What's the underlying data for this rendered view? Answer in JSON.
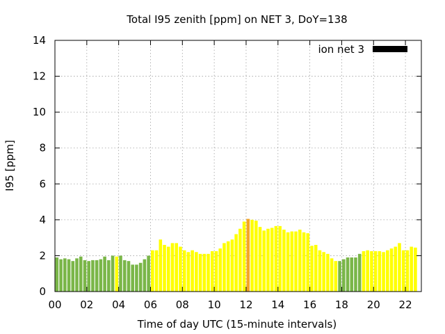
{
  "chart_data": {
    "type": "bar",
    "title": "Total I95 zenith [ppm] on NET 3, DoY=138",
    "xlabel": "Time of day UTC (15-minute intervals)",
    "ylabel": "I95 [ppm]",
    "xlim": [
      0,
      23
    ],
    "ylim": [
      0,
      14
    ],
    "x_ticks": [
      "00",
      "02",
      "04",
      "06",
      "08",
      "10",
      "12",
      "14",
      "16",
      "18",
      "20",
      "22"
    ],
    "y_ticks": [
      "0",
      "2",
      "4",
      "6",
      "8",
      "10",
      "12",
      "14"
    ],
    "grid": true,
    "legend": {
      "position": "top-right",
      "entries": [
        {
          "label": "ion net 3",
          "color": "#000000"
        }
      ]
    },
    "colors": {
      "green": "#7ab648",
      "yellow": "#ffff00",
      "orange": "#f5a623"
    },
    "interval_hours": 0.25,
    "values": [
      1.9,
      1.8,
      1.85,
      1.8,
      1.7,
      1.85,
      1.95,
      1.75,
      1.7,
      1.75,
      1.75,
      1.8,
      1.95,
      1.75,
      2.0,
      1.95,
      2.0,
      1.75,
      1.7,
      1.5,
      1.5,
      1.6,
      1.8,
      2.0,
      2.3,
      2.3,
      2.9,
      2.6,
      2.5,
      2.7,
      2.7,
      2.5,
      2.3,
      2.2,
      2.3,
      2.2,
      2.1,
      2.1,
      2.1,
      2.25,
      2.25,
      2.4,
      2.7,
      2.8,
      2.9,
      3.2,
      3.5,
      3.9,
      4.05,
      4.0,
      3.95,
      3.6,
      3.4,
      3.5,
      3.55,
      3.65,
      3.65,
      3.45,
      3.3,
      3.35,
      3.35,
      3.45,
      3.3,
      3.25,
      2.55,
      2.6,
      2.3,
      2.2,
      2.1,
      1.85,
      1.7,
      1.7,
      1.8,
      1.9,
      1.9,
      1.9,
      2.1,
      2.25,
      2.3,
      2.25,
      2.25,
      2.25,
      2.2,
      2.3,
      2.4,
      2.5,
      2.7,
      2.3,
      2.3,
      2.5,
      2.45
    ],
    "bar_colors": [
      "green",
      "green",
      "green",
      "green",
      "green",
      "green",
      "green",
      "green",
      "green",
      "green",
      "green",
      "green",
      "green",
      "green",
      "green",
      "yellow",
      "green",
      "green",
      "green",
      "green",
      "green",
      "green",
      "green",
      "green",
      "yellow",
      "yellow",
      "yellow",
      "yellow",
      "yellow",
      "yellow",
      "yellow",
      "yellow",
      "yellow",
      "yellow",
      "yellow",
      "yellow",
      "yellow",
      "yellow",
      "yellow",
      "yellow",
      "yellow",
      "yellow",
      "yellow",
      "yellow",
      "yellow",
      "yellow",
      "yellow",
      "yellow",
      "orange",
      "yellow",
      "yellow",
      "yellow",
      "yellow",
      "yellow",
      "yellow",
      "yellow",
      "yellow",
      "yellow",
      "yellow",
      "yellow",
      "yellow",
      "yellow",
      "yellow",
      "yellow",
      "yellow",
      "yellow",
      "yellow",
      "yellow",
      "yellow",
      "yellow",
      "yellow",
      "green",
      "green",
      "green",
      "green",
      "green",
      "green",
      "yellow",
      "yellow",
      "yellow",
      "yellow",
      "yellow",
      "yellow",
      "yellow",
      "yellow",
      "yellow",
      "yellow",
      "yellow",
      "yellow",
      "yellow",
      "yellow",
      "yellow"
    ]
  }
}
